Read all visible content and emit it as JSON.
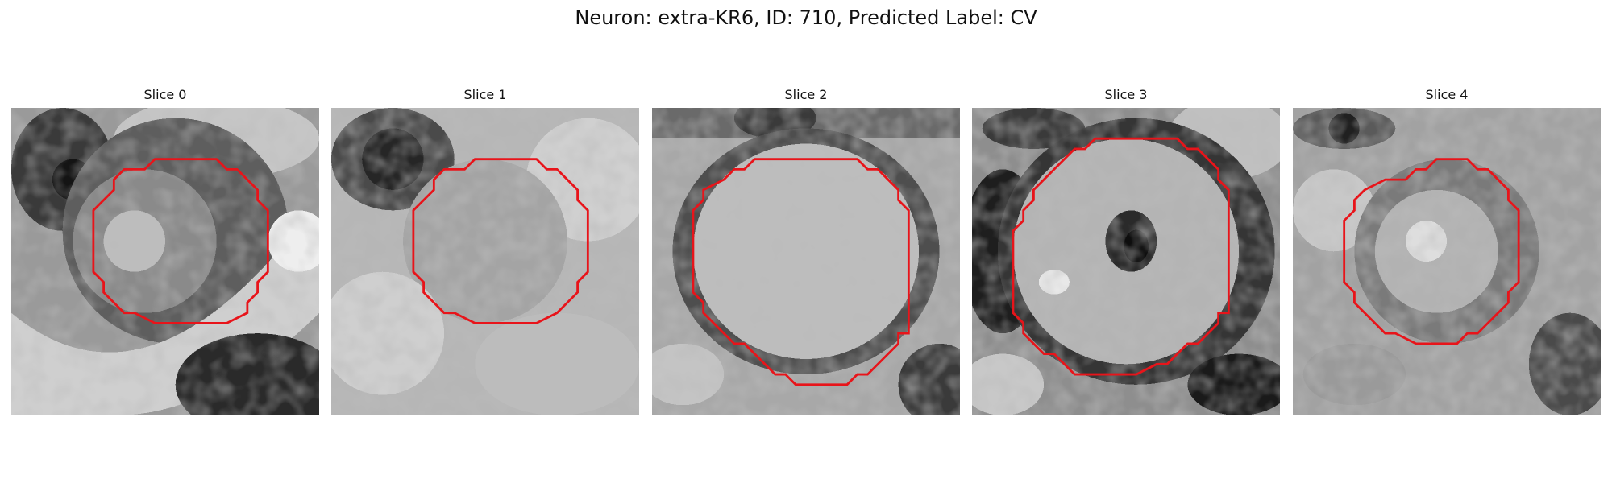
{
  "figure": {
    "title": "Neuron: extra-KR6, ID: 710, Predicted Label: CV"
  },
  "colors": {
    "contour": "#e8141a",
    "background": "#ffffff"
  },
  "panels": [
    {
      "title": "Slice 0",
      "scene": "grayscale patch with a dark blob in the upper-left, a bright diagonal band and a dark region in the lower-right"
    },
    {
      "title": "Slice 1",
      "scene": "bright noisy grayscale patch with a dark blob in the upper-left"
    },
    {
      "title": "Slice 2",
      "scene": "large bright circular cell ringed by a darker border"
    },
    {
      "title": "Slice 3",
      "scene": "bright cell with a dark nucleus spot near center, ringed by a dark border"
    },
    {
      "title": "Slice 4",
      "scene": "light noisy grayscale patch with a brighter center"
    }
  ]
}
